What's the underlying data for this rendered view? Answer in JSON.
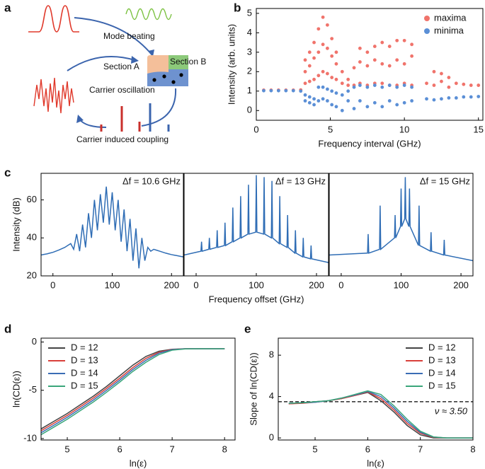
{
  "diagram": {
    "panel_label": "a",
    "labels": [
      "Mode beating",
      "Section A",
      "Section B",
      "Carrier oscillation",
      "Carrier induced coupling"
    ]
  },
  "chart_data": [
    {
      "type": "scatter",
      "panel_label": "b",
      "xlabel": "Frequency interval (GHz)",
      "ylabel": "Intensity (arb. units)",
      "xlim": [
        0,
        15.3
      ],
      "ylim": [
        -0.5,
        5.25
      ],
      "xticks": [
        0,
        5,
        10,
        15
      ],
      "yticks": [
        0,
        1,
        2,
        3,
        4,
        5
      ],
      "legend": "upper right",
      "series": [
        {
          "name": "maxima",
          "color": "#f0736b",
          "x": [
            0.5,
            1,
            1.5,
            2,
            2.5,
            3,
            3.3,
            3.3,
            3.3,
            3.6,
            3.6,
            3.6,
            3.9,
            3.9,
            3.9,
            4.2,
            4.2,
            4.2,
            4.5,
            4.5,
            4.5,
            4.8,
            4.8,
            4.8,
            5.1,
            5.1,
            5.1,
            5.4,
            5.4,
            5.4,
            5.8,
            5.8,
            6.2,
            6.2,
            6.6,
            6.6,
            7,
            7,
            7,
            7.5,
            7.5,
            7.5,
            8,
            8,
            8,
            8.5,
            8.5,
            8.5,
            9,
            9,
            9,
            9.5,
            9.5,
            9.5,
            10,
            10,
            10,
            10.5,
            10.5,
            10.5,
            11.5,
            12,
            12,
            12.5,
            12.5,
            13,
            13,
            13.5,
            14,
            14.5,
            15
          ],
          "values": [
            1.05,
            1.05,
            1.05,
            1.05,
            1.05,
            1.06,
            1.4,
            2.0,
            2.6,
            1.5,
            2.3,
            3.0,
            1.6,
            2.7,
            3.5,
            1.8,
            3.0,
            4.2,
            2.0,
            3.4,
            4.8,
            1.9,
            3.2,
            4.4,
            1.7,
            2.8,
            3.7,
            1.6,
            2.4,
            3.0,
            1.4,
            2.0,
            1.3,
            1.6,
            1.3,
            2.2,
            1.4,
            2.5,
            3.2,
            1.3,
            2.3,
            3.0,
            1.4,
            2.6,
            3.3,
            1.4,
            2.4,
            3.5,
            1.3,
            2.3,
            3.3,
            1.3,
            2.6,
            3.6,
            1.4,
            2.4,
            3.6,
            1.3,
            2.8,
            3.4,
            1.4,
            1.3,
            2.0,
            1.5,
            1.9,
            1.7,
            1.2,
            1.4,
            1.35,
            1.3,
            1.3
          ]
        },
        {
          "name": "minima",
          "color": "#5b8fd6",
          "x": [
            0.5,
            1,
            1.5,
            2,
            2.5,
            3,
            3.3,
            3.3,
            3.6,
            3.6,
            3.9,
            3.9,
            4.2,
            4.2,
            4.5,
            4.5,
            4.8,
            4.8,
            5.1,
            5.1,
            5.4,
            5.4,
            5.8,
            5.8,
            6.2,
            6.2,
            6.6,
            6.6,
            7,
            7,
            7.5,
            7.5,
            8,
            8,
            8.5,
            8.5,
            9,
            9,
            9.5,
            9.5,
            10,
            10,
            10.5,
            10.5,
            11.5,
            12,
            12.5,
            13,
            13.5,
            14,
            14.5,
            15
          ],
          "values": [
            1.02,
            1.02,
            1.02,
            1.02,
            1.02,
            1.0,
            0.8,
            0.5,
            0.7,
            0.4,
            0.6,
            0.3,
            1.2,
            0.5,
            1.2,
            0.6,
            1.1,
            0.5,
            1.0,
            0.3,
            0.9,
            0.2,
            0.8,
            0.0,
            1.0,
            0.5,
            1.2,
            0.1,
            1.3,
            0.5,
            1.2,
            0.2,
            1.3,
            0.4,
            1.2,
            0.2,
            1.3,
            0.5,
            1.2,
            0.3,
            1.3,
            0.4,
            1.2,
            0.5,
            0.6,
            0.55,
            0.6,
            0.65,
            0.65,
            0.7,
            0.7,
            0.72
          ]
        }
      ]
    },
    {
      "type": "line",
      "panel_label": "c",
      "title": "Δf = 10.6 GHz",
      "ylabel": "Intensity (dB)",
      "color": "#2f6db5",
      "xlim": [
        -20,
        220
      ],
      "ylim": [
        20,
        74
      ],
      "xticks": [
        0,
        100,
        200
      ],
      "yticks": [
        20,
        40,
        60
      ],
      "x": [
        -20,
        -15,
        -10,
        -5,
        0,
        5,
        10,
        15,
        20,
        25,
        30,
        35,
        40,
        45,
        50,
        55,
        60,
        65,
        70,
        75,
        80,
        85,
        90,
        95,
        100,
        105,
        110,
        115,
        120,
        125,
        130,
        135,
        140,
        145,
        150,
        155,
        160,
        165,
        170,
        175,
        180,
        185,
        190,
        195,
        200,
        205,
        210,
        215,
        220
      ],
      "values": [
        31,
        31.3,
        31.6,
        32,
        32.4,
        33,
        33.6,
        34.3,
        35,
        36,
        37,
        34,
        42,
        33,
        47,
        35,
        53,
        40,
        60,
        44,
        63,
        48,
        67,
        47,
        64,
        44,
        60,
        38,
        55,
        33,
        50,
        28,
        45,
        24,
        40,
        28,
        35,
        33,
        34,
        33.5,
        33,
        32.5,
        32,
        31.6,
        31.2,
        30.9,
        30.6,
        30.3,
        30
      ]
    },
    {
      "type": "line",
      "title": "Δf = 13 GHz",
      "xlabel": "Frequency offset (GHz)",
      "color": "#2f6db5",
      "xlim": [
        -20,
        220
      ],
      "ylim": [
        20,
        74
      ],
      "xticks": [
        0,
        100,
        200
      ],
      "x": [
        -20,
        8,
        9,
        10,
        21,
        22,
        23,
        34,
        35,
        36,
        47,
        48,
        49,
        60,
        61,
        62,
        73,
        74,
        75,
        86,
        87,
        88,
        99,
        100,
        101,
        112,
        113,
        114,
        125,
        126,
        127,
        138,
        139,
        140,
        151,
        152,
        153,
        164,
        165,
        166,
        177,
        178,
        179,
        190,
        191,
        192,
        220
      ],
      "values": [
        31,
        33,
        38,
        33,
        34,
        40,
        34,
        35,
        44,
        35,
        36,
        48,
        36,
        38,
        56,
        38,
        40,
        62,
        40,
        42,
        68,
        42,
        43,
        73,
        43,
        42,
        72,
        42,
        40,
        70,
        40,
        37,
        62,
        37,
        35,
        52,
        35,
        32,
        44,
        32,
        30,
        40,
        30,
        29,
        36,
        29,
        27
      ]
    },
    {
      "type": "line",
      "title": "Δf = 15 GHz",
      "color": "#2f6db5",
      "xlim": [
        -20,
        220
      ],
      "ylim": [
        20,
        74
      ],
      "xticks": [
        0,
        100,
        200
      ],
      "x": [
        -20,
        44,
        45,
        46,
        64,
        65,
        66,
        89,
        90,
        91,
        99,
        100,
        101,
        106,
        107,
        108,
        113,
        114,
        115,
        129,
        130,
        131,
        149,
        150,
        151,
        171,
        172,
        173,
        220
      ],
      "values": [
        31,
        32,
        42,
        32,
        34,
        57,
        34,
        40,
        52,
        40,
        46,
        66,
        46,
        50,
        72,
        50,
        46,
        66,
        46,
        36,
        57,
        36,
        33,
        43,
        33,
        31,
        39,
        31,
        28
      ]
    },
    {
      "type": "line",
      "panel_label": "d",
      "xlabel": "ln(ε)",
      "ylabel": "ln(CD(ε))",
      "xlim": [
        4.5,
        8.2
      ],
      "ylim": [
        -10.15,
        0.4
      ],
      "xticks": [
        5,
        6,
        7,
        8
      ],
      "yticks": [
        -10,
        -5,
        0
      ],
      "legend": "upper left",
      "x": [
        4.5,
        4.75,
        5,
        5.25,
        5.5,
        5.75,
        6,
        6.25,
        6.5,
        6.75,
        7,
        7.25,
        7.5,
        7.75,
        8
      ],
      "series": [
        {
          "name": "D = 12",
          "color": "#444444",
          "values": [
            -9.0,
            -8.2,
            -7.4,
            -6.5,
            -5.6,
            -4.6,
            -3.5,
            -2.4,
            -1.5,
            -0.95,
            -0.75,
            -0.7,
            -0.7,
            -0.7,
            -0.7
          ]
        },
        {
          "name": "D = 13",
          "color": "#d9403a",
          "values": [
            -9.2,
            -8.4,
            -7.6,
            -6.7,
            -5.8,
            -4.8,
            -3.75,
            -2.65,
            -1.7,
            -1.05,
            -0.78,
            -0.7,
            -0.7,
            -0.7,
            -0.7
          ]
        },
        {
          "name": "D = 14",
          "color": "#3a6db5",
          "values": [
            -9.4,
            -8.6,
            -7.8,
            -6.9,
            -6.0,
            -5.0,
            -3.95,
            -2.85,
            -1.9,
            -1.15,
            -0.8,
            -0.7,
            -0.7,
            -0.7,
            -0.7
          ]
        },
        {
          "name": "D = 15",
          "color": "#3aa67a",
          "values": [
            -9.6,
            -8.8,
            -8.0,
            -7.1,
            -6.2,
            -5.2,
            -4.15,
            -3.05,
            -2.1,
            -1.3,
            -0.85,
            -0.72,
            -0.7,
            -0.7,
            -0.7
          ]
        }
      ]
    },
    {
      "type": "line",
      "panel_label": "e",
      "xlabel": "ln(ε)",
      "ylabel": "Slope of ln(CD(ε))",
      "xlim": [
        4.3,
        8
      ],
      "ylim": [
        -0.2,
        9.65
      ],
      "xticks": [
        5,
        6,
        7,
        8
      ],
      "yticks": [
        0,
        4,
        8
      ],
      "legend": "upper right",
      "reference_line": {
        "value": 3.5,
        "label": "ν ≈ 3.50"
      },
      "x": [
        4.5,
        4.75,
        5,
        5.25,
        5.5,
        5.75,
        6,
        6.25,
        6.5,
        6.75,
        7,
        7.25,
        7.5,
        7.75,
        8
      ],
      "series": [
        {
          "name": "D = 12",
          "color": "#444444",
          "values": [
            3.3,
            3.4,
            3.5,
            3.6,
            3.8,
            4.1,
            4.4,
            3.6,
            2.5,
            1.2,
            0.3,
            0,
            0,
            0,
            0
          ]
        },
        {
          "name": "D = 13",
          "color": "#d9403a",
          "values": [
            3.3,
            3.35,
            3.45,
            3.6,
            3.8,
            4.1,
            4.45,
            3.8,
            2.7,
            1.4,
            0.45,
            0.05,
            0,
            0,
            0
          ]
        },
        {
          "name": "D = 14",
          "color": "#3a6db5",
          "values": [
            3.35,
            3.4,
            3.45,
            3.6,
            3.85,
            4.15,
            4.5,
            4.0,
            2.9,
            1.6,
            0.55,
            0.08,
            0,
            0,
            0
          ]
        },
        {
          "name": "D = 15",
          "color": "#3aa67a",
          "values": [
            3.35,
            3.4,
            3.5,
            3.6,
            3.85,
            4.2,
            4.55,
            4.2,
            3.1,
            1.8,
            0.65,
            0.1,
            0,
            0,
            0
          ]
        }
      ]
    }
  ]
}
